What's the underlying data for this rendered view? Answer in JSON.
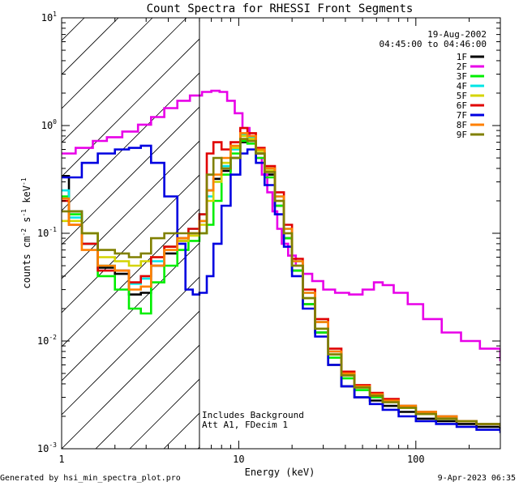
{
  "chart_data": {
    "type": "line",
    "title": "Count Spectra for RHESSI Front Segments",
    "xlabel": "Energy (keV)",
    "ylabel": "counts cm-2 s-1 keV-1",
    "xscale": "log",
    "yscale": "log",
    "xlim": [
      1,
      300
    ],
    "ylim": [
      0.001,
      10
    ],
    "x_ticks": [
      {
        "value": 1,
        "label": "1"
      },
      {
        "value": 10,
        "label": "10"
      },
      {
        "value": 100,
        "label": "100"
      }
    ],
    "y_ticks": [
      {
        "value": 10,
        "label": "10^1"
      },
      {
        "value": 1,
        "label": "10^0"
      },
      {
        "value": 0.1,
        "label": "10^-1"
      },
      {
        "value": 0.01,
        "label": "10^-2"
      },
      {
        "value": 0.001,
        "label": "10^-3"
      }
    ],
    "date": "19-Aug-2002",
    "time_range": "04:45:00 to 04:46:00",
    "attenuator_cutoff_kev": 6,
    "annotation_lines": [
      "Includes Background",
      "Att A1, FDecim 1"
    ],
    "footer_left": "Generated by hsi_min_spectra_plot.pro",
    "footer_right": "9-Apr-2023 06:35",
    "series": [
      {
        "name": "1F",
        "color": "#000000",
        "x": [
          1.0,
          1.1,
          1.3,
          1.6,
          2.0,
          2.4,
          2.8,
          3.2,
          3.8,
          4.5,
          5.2,
          6.0,
          6.6,
          7.2,
          8.0,
          9.0,
          10.2,
          11.2,
          12.5,
          14.0,
          16.0,
          18.0,
          20.0,
          23.0,
          27.0,
          32.0,
          38.0,
          45.0,
          55.0,
          65.0,
          80.0,
          100.0,
          130.0,
          170.0,
          220.0,
          300.0
        ],
        "y": [
          0.34,
          0.16,
          0.08,
          0.048,
          0.042,
          0.027,
          0.028,
          0.05,
          0.065,
          0.085,
          0.1,
          0.13,
          0.25,
          0.32,
          0.38,
          0.5,
          0.7,
          0.72,
          0.55,
          0.35,
          0.18,
          0.09,
          0.045,
          0.022,
          0.012,
          0.006,
          0.0038,
          0.003,
          0.0028,
          0.0025,
          0.0022,
          0.0019,
          0.0018,
          0.0017,
          0.0016,
          0.0015
        ]
      },
      {
        "name": "2F",
        "color": "#e800e8",
        "x": [
          1.0,
          1.2,
          1.5,
          1.8,
          2.2,
          2.7,
          3.2,
          3.8,
          4.5,
          5.3,
          6.2,
          7.0,
          7.8,
          8.6,
          9.5,
          10.5,
          11.5,
          12.5,
          13.5,
          14.5,
          15.5,
          16.5,
          17.5,
          19.0,
          21.0,
          23.0,
          26.0,
          30.0,
          35.0,
          42.0,
          50.0,
          58.0,
          65.0,
          75.0,
          90.0,
          110.0,
          140.0,
          180.0,
          230.0,
          300.0
        ],
        "y": [
          0.55,
          0.62,
          0.72,
          0.78,
          0.88,
          1.02,
          1.2,
          1.45,
          1.7,
          1.9,
          2.05,
          2.1,
          2.05,
          1.7,
          1.3,
          0.95,
          0.72,
          0.5,
          0.35,
          0.24,
          0.16,
          0.11,
          0.08,
          0.062,
          0.05,
          0.042,
          0.036,
          0.03,
          0.028,
          0.027,
          0.03,
          0.035,
          0.033,
          0.028,
          0.022,
          0.016,
          0.012,
          0.01,
          0.0085,
          0.0065
        ]
      },
      {
        "name": "3F",
        "color": "#00ee00",
        "x": [
          1.0,
          1.1,
          1.3,
          1.6,
          2.0,
          2.4,
          2.8,
          3.2,
          3.8,
          4.5,
          5.2,
          6.0,
          6.6,
          7.2,
          8.0,
          9.0,
          10.2,
          11.2,
          12.5,
          14.0,
          16.0,
          18.0,
          20.0,
          23.0,
          27.0,
          32.0,
          38.0,
          45.0,
          55.0,
          65.0,
          80.0,
          100.0,
          130.0,
          170.0,
          220.0,
          300.0
        ],
        "y": [
          0.22,
          0.15,
          0.1,
          0.04,
          0.03,
          0.02,
          0.018,
          0.035,
          0.05,
          0.07,
          0.085,
          0.1,
          0.12,
          0.2,
          0.35,
          0.55,
          0.72,
          0.68,
          0.5,
          0.33,
          0.18,
          0.09,
          0.045,
          0.022,
          0.012,
          0.007,
          0.0045,
          0.0035,
          0.003,
          0.0027,
          0.0024,
          0.0021,
          0.0019,
          0.0018,
          0.0017,
          0.0016
        ]
      },
      {
        "name": "4F",
        "color": "#00e5e5",
        "x": [
          1.0,
          1.1,
          1.3,
          1.6,
          2.0,
          2.4,
          2.8,
          3.2,
          3.8,
          4.5,
          5.2,
          6.0,
          6.6,
          7.2,
          8.0,
          9.0,
          10.2,
          11.2,
          12.5,
          14.0,
          16.0,
          18.0,
          20.0,
          23.0,
          27.0,
          32.0,
          38.0,
          45.0,
          55.0,
          65.0,
          80.0,
          100.0,
          130.0,
          170.0,
          220.0,
          300.0
        ],
        "y": [
          0.25,
          0.14,
          0.08,
          0.05,
          0.045,
          0.034,
          0.038,
          0.055,
          0.075,
          0.09,
          0.11,
          0.15,
          0.22,
          0.3,
          0.42,
          0.6,
          0.82,
          0.78,
          0.6,
          0.4,
          0.22,
          0.11,
          0.055,
          0.028,
          0.015,
          0.008,
          0.005,
          0.0038,
          0.0032,
          0.0028,
          0.0025,
          0.0022,
          0.002,
          0.0018,
          0.0017,
          0.0016
        ]
      },
      {
        "name": "5F",
        "color": "#d4d400",
        "x": [
          1.0,
          1.1,
          1.3,
          1.6,
          2.0,
          2.4,
          2.8,
          3.2,
          3.8,
          4.5,
          5.2,
          6.0,
          6.6,
          7.2,
          8.0,
          9.0,
          10.2,
          11.2,
          12.5,
          14.0,
          16.0,
          18.0,
          20.0,
          23.0,
          27.0,
          32.0,
          38.0,
          45.0,
          55.0,
          65.0,
          80.0,
          100.0,
          130.0,
          170.0,
          220.0,
          300.0
        ],
        "y": [
          0.13,
          0.13,
          0.1,
          0.06,
          0.055,
          0.05,
          0.055,
          0.06,
          0.075,
          0.085,
          0.095,
          0.12,
          0.2,
          0.3,
          0.45,
          0.62,
          0.8,
          0.75,
          0.58,
          0.38,
          0.2,
          0.1,
          0.05,
          0.025,
          0.013,
          0.0075,
          0.0048,
          0.0037,
          0.0031,
          0.0027,
          0.0024,
          0.0021,
          0.0019,
          0.0018,
          0.0017,
          0.0016
        ]
      },
      {
        "name": "6F",
        "color": "#e00000",
        "x": [
          1.0,
          1.1,
          1.3,
          1.6,
          2.0,
          2.4,
          2.8,
          3.2,
          3.8,
          4.5,
          5.2,
          6.0,
          6.6,
          7.2,
          8.0,
          9.0,
          10.2,
          11.2,
          12.5,
          14.0,
          16.0,
          18.0,
          20.0,
          23.0,
          27.0,
          32.0,
          38.0,
          45.0,
          55.0,
          65.0,
          80.0,
          100.0,
          130.0,
          170.0,
          220.0,
          300.0
        ],
        "y": [
          0.2,
          0.12,
          0.08,
          0.045,
          0.045,
          0.035,
          0.04,
          0.06,
          0.075,
          0.09,
          0.11,
          0.15,
          0.55,
          0.7,
          0.6,
          0.7,
          0.95,
          0.85,
          0.62,
          0.42,
          0.24,
          0.12,
          0.058,
          0.03,
          0.016,
          0.0085,
          0.0052,
          0.0039,
          0.0033,
          0.0029,
          0.0025,
          0.0022,
          0.002,
          0.0018,
          0.0017,
          0.0016
        ]
      },
      {
        "name": "7F",
        "color": "#0000e0",
        "x": [
          1.0,
          1.1,
          1.3,
          1.6,
          2.0,
          2.4,
          2.8,
          3.2,
          3.8,
          4.5,
          5.0,
          5.5,
          6.0,
          6.6,
          7.2,
          8.0,
          9.0,
          10.2,
          11.2,
          12.5,
          14.0,
          16.0,
          18.0,
          20.0,
          23.0,
          27.0,
          32.0,
          38.0,
          45.0,
          55.0,
          65.0,
          80.0,
          100.0,
          130.0,
          170.0,
          220.0,
          300.0
        ],
        "y": [
          0.33,
          0.33,
          0.45,
          0.55,
          0.6,
          0.62,
          0.65,
          0.45,
          0.22,
          0.08,
          0.03,
          0.027,
          0.028,
          0.04,
          0.08,
          0.18,
          0.35,
          0.55,
          0.6,
          0.45,
          0.28,
          0.15,
          0.075,
          0.04,
          0.02,
          0.011,
          0.006,
          0.0038,
          0.003,
          0.0026,
          0.0023,
          0.002,
          0.0018,
          0.0017,
          0.0016,
          0.0015,
          0.0014
        ]
      },
      {
        "name": "8F",
        "color": "#ff8000",
        "x": [
          1.0,
          1.1,
          1.3,
          1.6,
          2.0,
          2.4,
          2.8,
          3.2,
          3.8,
          4.5,
          5.2,
          6.0,
          6.6,
          7.2,
          8.0,
          9.0,
          10.2,
          11.2,
          12.5,
          14.0,
          16.0,
          18.0,
          20.0,
          23.0,
          27.0,
          32.0,
          38.0,
          45.0,
          55.0,
          65.0,
          80.0,
          100.0,
          130.0,
          170.0,
          220.0,
          300.0
        ],
        "y": [
          0.21,
          0.12,
          0.07,
          0.05,
          0.045,
          0.03,
          0.032,
          0.05,
          0.07,
          0.09,
          0.1,
          0.13,
          0.25,
          0.35,
          0.5,
          0.65,
          0.85,
          0.8,
          0.6,
          0.4,
          0.22,
          0.11,
          0.055,
          0.028,
          0.015,
          0.008,
          0.005,
          0.0038,
          0.0032,
          0.0028,
          0.0025,
          0.0022,
          0.002,
          0.0018,
          0.0017,
          0.0016
        ]
      },
      {
        "name": "9F",
        "color": "#808000",
        "x": [
          1.0,
          1.1,
          1.3,
          1.6,
          2.0,
          2.4,
          2.8,
          3.2,
          3.8,
          4.5,
          5.2,
          6.0,
          6.6,
          7.2,
          8.0,
          9.0,
          10.2,
          11.2,
          12.5,
          14.0,
          16.0,
          18.0,
          20.0,
          23.0,
          27.0,
          32.0,
          38.0,
          45.0,
          55.0,
          65.0,
          80.0,
          100.0,
          130.0,
          170.0,
          220.0,
          300.0
        ],
        "y": [
          0.16,
          0.16,
          0.1,
          0.07,
          0.065,
          0.06,
          0.065,
          0.09,
          0.1,
          0.1,
          0.1,
          0.1,
          0.35,
          0.5,
          0.4,
          0.5,
          0.75,
          0.72,
          0.55,
          0.37,
          0.2,
          0.1,
          0.05,
          0.025,
          0.013,
          0.0075,
          0.0048,
          0.0037,
          0.0031,
          0.0027,
          0.0024,
          0.0021,
          0.0019,
          0.0018,
          0.0017,
          0.0016
        ]
      }
    ]
  }
}
